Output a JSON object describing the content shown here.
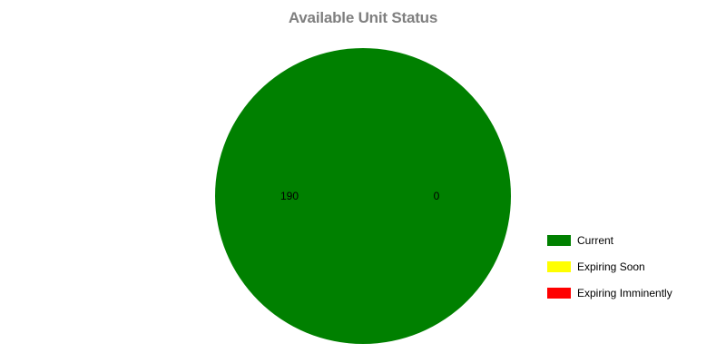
{
  "chart_data": {
    "type": "pie",
    "title": "Available Unit Status",
    "slices": [
      {
        "label": "Current",
        "value": 190,
        "color": "#008000"
      },
      {
        "label": "Expiring Soon",
        "value": 0,
        "color": "#ffff00"
      },
      {
        "label": "Expiring Imminently",
        "value": 0,
        "color": "#ff0000"
      }
    ],
    "data_labels": [
      "190",
      "0"
    ],
    "legend_position": "right"
  }
}
